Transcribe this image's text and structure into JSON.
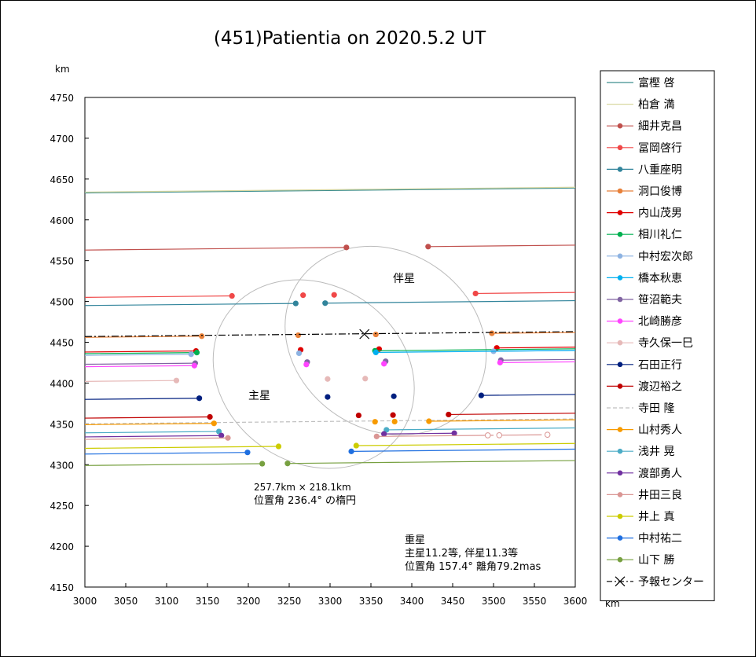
{
  "chart_data": {
    "type": "line",
    "title": "(451)Patientia on 2020.5.2 UT",
    "x_unit": "km",
    "y_unit": "km",
    "xlim": [
      3000,
      3600
    ],
    "ylim": [
      4150,
      4750
    ],
    "x_ticks": [
      3000,
      3050,
      3100,
      3150,
      3200,
      3250,
      3300,
      3350,
      3400,
      3450,
      3500,
      3550,
      3600
    ],
    "y_ticks": [
      4150,
      4200,
      4250,
      4300,
      4350,
      4400,
      4450,
      4500,
      4550,
      4600,
      4650,
      4700,
      4750
    ],
    "grid": false,
    "legend_position": "right",
    "labels": {
      "primary": "主星",
      "secondary": "伴星",
      "ellipse_line1": "257.7km × 218.1km",
      "ellipse_line2": "位置角 236.4°  の楕円",
      "double_line1": "重星",
      "double_line2": "主星11.2等, 伴星11.3等",
      "double_line3": "位置角 157.4°  離角79.2mas"
    },
    "ellipses": [
      {
        "name": "主星",
        "center": [
          3280,
          4411
        ],
        "semi_major_km": 128.85,
        "semi_minor_km": 109.05,
        "position_angle_deg": 236.4,
        "color": "#bbbbbb"
      },
      {
        "name": "伴星",
        "center": [
          3368,
          4452
        ],
        "semi_major_km": 128.85,
        "semi_minor_km": 109.05,
        "position_angle_deg": 236.4,
        "color": "#bbbbbb"
      }
    ],
    "predicted_center": {
      "x": 3342,
      "y": 4460
    },
    "predicted_line": {
      "y0": 4457,
      "y1": 4463,
      "color": "#000000",
      "dash": "dashdot"
    },
    "series": [
      {
        "name": "富樫 啓",
        "color": "#3f8f8f",
        "dash": "",
        "y0": 4633,
        "y1": 4639,
        "segs": [
          [
            3000,
            3600
          ]
        ],
        "points": []
      },
      {
        "name": "柏倉 満",
        "color": "#d7d7a0",
        "dash": "",
        "y0": 4634,
        "y1": 4640,
        "segs": [
          [
            3000,
            3600
          ]
        ],
        "points": []
      },
      {
        "name": "細井克昌",
        "color": "#c0504d",
        "dash": "",
        "y0": 4563,
        "y1": 4569,
        "segs": [
          [
            3000,
            3320
          ],
          [
            3420,
            3600
          ]
        ],
        "points": [
          3320,
          3420
        ]
      },
      {
        "name": "冨岡啓行",
        "color": "#f04848",
        "dash": "",
        "y0": 4505,
        "y1": 4511,
        "segs": [
          [
            3000,
            3180
          ],
          [
            3478,
            3600
          ]
        ],
        "points": [
          3180,
          3267,
          3305,
          3478
        ]
      },
      {
        "name": "八重座明",
        "color": "#31849b",
        "dash": "",
        "y0": 4495,
        "y1": 4501,
        "segs": [
          [
            3000,
            3258
          ],
          [
            3294,
            3600
          ]
        ],
        "points": [
          3258,
          3294
        ]
      },
      {
        "name": "洞口俊博",
        "color": "#e8813a",
        "dash": "",
        "y0": 4456,
        "y1": 4462,
        "segs": [
          [
            3000,
            3143
          ],
          [
            3498,
            3600
          ]
        ],
        "points": [
          3143,
          3261,
          3356,
          3498
        ]
      },
      {
        "name": "内山茂男",
        "color": "#e00000",
        "dash": "",
        "y0": 4438,
        "y1": 4444,
        "segs": [
          [
            3000,
            3136
          ],
          [
            3504,
            3600
          ]
        ],
        "points": [
          3136,
          3264,
          3360,
          3504
        ]
      },
      {
        "name": "相川礼仁",
        "color": "#00b050",
        "dash": "",
        "y0": 4436,
        "y1": 4442,
        "segs": [
          [
            3000,
            3137
          ],
          [
            3355,
            3600
          ]
        ],
        "points": [
          3137,
          3355
        ]
      },
      {
        "name": "中村宏次郎",
        "color": "#8db3e2",
        "dash": "",
        "y0": 4434,
        "y1": 4440,
        "segs": [
          [
            3000,
            3130
          ],
          [
            3500,
            3600
          ]
        ],
        "points": [
          3130,
          3262,
          3500
        ]
      },
      {
        "name": "橋本秋恵",
        "color": "#00b0f0",
        "dash": "",
        "y0": 4434,
        "y1": 4440,
        "segs": [
          [
            3356,
            3600
          ]
        ],
        "points": [
          3356
        ]
      },
      {
        "name": "笹沼範夫",
        "color": "#8064a2",
        "dash": "",
        "y0": 4423,
        "y1": 4429,
        "segs": [
          [
            3000,
            3135
          ],
          [
            3509,
            3600
          ]
        ],
        "points": [
          3135,
          3272,
          3368,
          3509
        ]
      },
      {
        "name": "北崎勝彦",
        "color": "#ff44ff",
        "dash": "",
        "y0": 4420,
        "y1": 4426,
        "segs": [
          [
            3000,
            3134
          ],
          [
            3508,
            3600
          ]
        ],
        "points": [
          3134,
          3271,
          3366,
          3508
        ]
      },
      {
        "name": "寺久保一巳",
        "color": "#e6b9b8",
        "dash": "",
        "y0": 4402,
        "y1": 4408,
        "segs": [
          [
            3000,
            3112
          ]
        ],
        "points": [
          3112,
          3297,
          3343
        ]
      },
      {
        "name": "石田正行",
        "color": "#001f7f",
        "dash": "",
        "y0": 4380,
        "y1": 4386,
        "segs": [
          [
            3000,
            3140
          ],
          [
            3485,
            3600
          ]
        ],
        "points": [
          3140,
          3297,
          3378,
          3485
        ]
      },
      {
        "name": "渡辺裕之",
        "color": "#c00000",
        "dash": "",
        "y0": 4357,
        "y1": 4363,
        "segs": [
          [
            3000,
            3153
          ],
          [
            3445,
            3600
          ]
        ],
        "points": [
          3153,
          3335,
          3377,
          3445
        ]
      },
      {
        "name": "寺田 隆",
        "color": "#bfbfbf",
        "dash": "5 3",
        "y0": 4350,
        "y1": 4356,
        "segs": [
          [
            3000,
            3600
          ]
        ],
        "points": []
      },
      {
        "name": "山村秀人",
        "color": "#f79a00",
        "dash": "",
        "y0": 4349,
        "y1": 4355,
        "segs": [
          [
            3000,
            3158
          ],
          [
            3421,
            3600
          ]
        ],
        "points": [
          3158,
          3355,
          3379,
          3421
        ]
      },
      {
        "name": "浅井 晃",
        "color": "#4bacc6",
        "dash": "",
        "y0": 4339,
        "y1": 4345,
        "segs": [
          [
            3000,
            3164
          ],
          [
            3369,
            3600
          ]
        ],
        "points": [
          3164,
          3369
        ]
      },
      {
        "name": "渡部勇人",
        "color": "#7030a0",
        "dash": "",
        "y0": 4334,
        "y1": 4340,
        "segs": [
          [
            3000,
            3167
          ],
          [
            3366,
            3452
          ]
        ],
        "points": [
          3167,
          3366,
          3452
        ]
      },
      {
        "name": "井田三良",
        "color": "#da9694",
        "dash": "",
        "y0": 4331,
        "y1": 4337,
        "segs": [
          [
            3000,
            3175
          ],
          [
            3357,
            3500
          ],
          [
            3507,
            3559
          ]
        ],
        "points": [
          3175,
          3357
        ],
        "open_points": [
          3493,
          3507,
          3566
        ]
      },
      {
        "name": "井上 真",
        "color": "#cccc00",
        "dash": "",
        "y0": 4320,
        "y1": 4326,
        "segs": [
          [
            3000,
            3237
          ],
          [
            3332,
            3600
          ]
        ],
        "points": [
          3237,
          3332
        ]
      },
      {
        "name": "中村祐二",
        "color": "#1f6fe0",
        "dash": "",
        "y0": 4313,
        "y1": 4319,
        "segs": [
          [
            3000,
            3199
          ],
          [
            3326,
            3600
          ]
        ],
        "points": [
          3199,
          3326
        ]
      },
      {
        "name": "山下 勝",
        "color": "#77a040",
        "dash": "",
        "y0": 4299,
        "y1": 4305,
        "segs": [
          [
            3000,
            3217
          ],
          [
            3248,
            3600
          ]
        ],
        "points": [
          3217,
          3248
        ]
      }
    ],
    "predicted_legend": "予報センター"
  }
}
